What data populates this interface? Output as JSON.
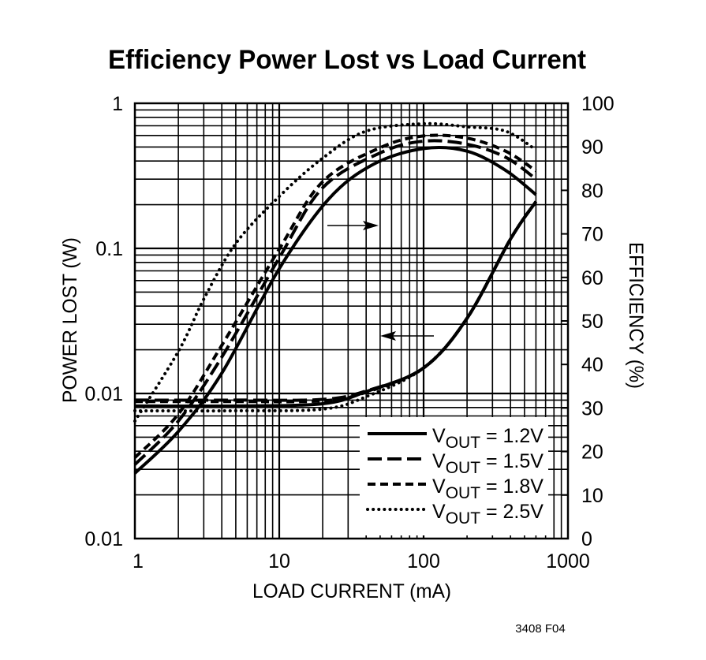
{
  "chart_data": {
    "type": "line",
    "title": "Efficiency Power Lost vs Load Current",
    "xlabel": "LOAD CURRENT (mA)",
    "ylabel_left": "POWER LOST (W)",
    "ylabel_right": "EFFICIENCY (%)",
    "x_scale": "log",
    "xlim": [
      1,
      1000
    ],
    "x_ticks": [
      "1",
      "10",
      "100",
      "1000"
    ],
    "y_left_scale": "log",
    "y_left_lim": [
      0.001,
      1
    ],
    "y_left_ticks": [
      "1",
      "0.1",
      "0.01",
      "0.01"
    ],
    "y_right_lim": [
      0,
      100
    ],
    "y_right_ticks": [
      "100",
      "90",
      "80",
      "70",
      "60",
      "50",
      "40",
      "30",
      "20",
      "10",
      "0"
    ],
    "grid": true,
    "legend_placement": "bottom-right",
    "footnote": "3408 F04",
    "series": [
      {
        "v": "V",
        "sub": "OUT",
        "value": " = 1.2V",
        "style": "solid",
        "efficiency": {
          "x": [
            1,
            2,
            4,
            10,
            22,
            45,
            100,
            200,
            370,
            600
          ],
          "y": [
            15,
            24.6,
            38,
            62,
            78,
            86,
            89.6,
            89,
            84.6,
            79
          ]
        },
        "power_lost": {
          "x": [
            1,
            5,
            20,
            40,
            100,
            200,
            400,
            600
          ],
          "y": [
            0.0082,
            0.0082,
            0.0085,
            0.0103,
            0.015,
            0.033,
            0.116,
            0.21
          ]
        }
      },
      {
        "v": "V",
        "sub": "OUT",
        "value": " = 1.5V",
        "style": "long-dash",
        "efficiency": {
          "x": [
            1,
            2,
            4,
            10,
            20,
            50,
            100,
            200,
            370,
            600
          ],
          "y": [
            17,
            27,
            41.7,
            64.5,
            80.6,
            88.6,
            91.3,
            90.6,
            87.6,
            82.6
          ]
        },
        "power_lost": {
          "x": [
            1,
            5,
            20,
            40,
            100,
            200,
            400,
            600
          ],
          "y": [
            0.009,
            0.009,
            0.0091,
            0.0104,
            0.015,
            0.033,
            0.116,
            0.21
          ]
        }
      },
      {
        "v": "V",
        "sub": "OUT",
        "value": " = 1.8V",
        "style": "short-dash",
        "efficiency": {
          "x": [
            1,
            2,
            4,
            10,
            20,
            50,
            100,
            200,
            370,
            600
          ],
          "y": [
            18.6,
            28.6,
            44.4,
            66.5,
            82,
            89.8,
            92.5,
            92,
            89,
            84.5
          ]
        },
        "power_lost": {
          "x": [
            1,
            5,
            20,
            40,
            100,
            200,
            400,
            600
          ],
          "y": [
            0.0088,
            0.0088,
            0.0089,
            0.0102,
            0.015,
            0.033,
            0.116,
            0.21
          ]
        }
      },
      {
        "v": "V",
        "sub": "OUT",
        "value": " = 2.5V",
        "style": "dotted",
        "efficiency": {
          "x": [
            1,
            2,
            3,
            5,
            10,
            20,
            40,
            100,
            200,
            370,
            600
          ],
          "y": [
            27,
            43,
            55,
            67.8,
            78.6,
            87.4,
            93.6,
            95.3,
            94.6,
            93.6,
            89.3
          ]
        },
        "power_lost": {
          "x": [
            1,
            5,
            20,
            40,
            100,
            200,
            400,
            600
          ],
          "y": [
            0.0076,
            0.0076,
            0.0078,
            0.0095,
            0.015,
            0.033,
            0.116,
            0.21
          ]
        }
      }
    ],
    "annotations": [
      {
        "type": "arrow",
        "direction": "right",
        "meaning": "efficiency curves read on right axis"
      },
      {
        "type": "arrow",
        "direction": "left",
        "meaning": "power lost curves read on left axis"
      }
    ]
  }
}
